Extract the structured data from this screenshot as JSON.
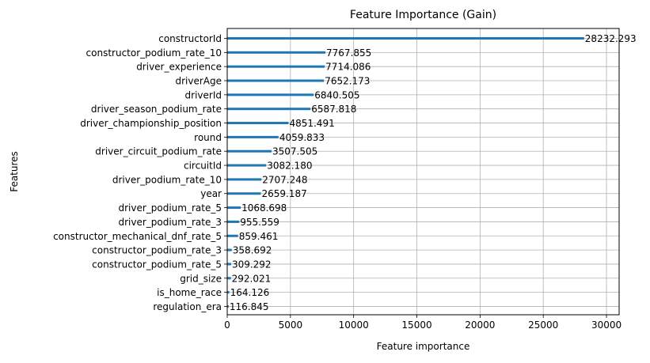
{
  "chart_data": {
    "type": "bar",
    "orientation": "horizontal",
    "title": "Feature Importance (Gain)",
    "xlabel": "Feature importance",
    "ylabel": "Features",
    "xlim": [
      0,
      31000
    ],
    "xticks": [
      0,
      5000,
      10000,
      15000,
      20000,
      25000,
      30000
    ],
    "grid": true,
    "bar_color": "#1f77b4",
    "categories": [
      "constructorId",
      "constructor_podium_rate_10",
      "driver_experience",
      "driverAge",
      "driverId",
      "driver_season_podium_rate",
      "driver_championship_position",
      "round",
      "driver_circuit_podium_rate",
      "circuitId",
      "driver_podium_rate_10",
      "year",
      "driver_podium_rate_5",
      "driver_podium_rate_3",
      "constructor_mechanical_dnf_rate_5",
      "constructor_podium_rate_3",
      "constructor_podium_rate_5",
      "grid_size",
      "is_home_race",
      "regulation_era"
    ],
    "values": [
      28232.293,
      7767.855,
      7714.086,
      7652.173,
      6840.505,
      6587.818,
      4851.491,
      4059.833,
      3507.505,
      3082.18,
      2707.248,
      2659.187,
      1068.698,
      955.559,
      859.461,
      358.692,
      309.292,
      292.021,
      164.126,
      116.845
    ],
    "data_labels": [
      "28232.293",
      "7767.855",
      "7714.086",
      "7652.173",
      "6840.505",
      "6587.818",
      "4851.491",
      "4059.833",
      "3507.505",
      "3082.180",
      "2707.248",
      "2659.187",
      "1068.698",
      "955.559",
      "859.461",
      "358.692",
      "309.292",
      "292.021",
      "164.126",
      "116.845"
    ]
  }
}
